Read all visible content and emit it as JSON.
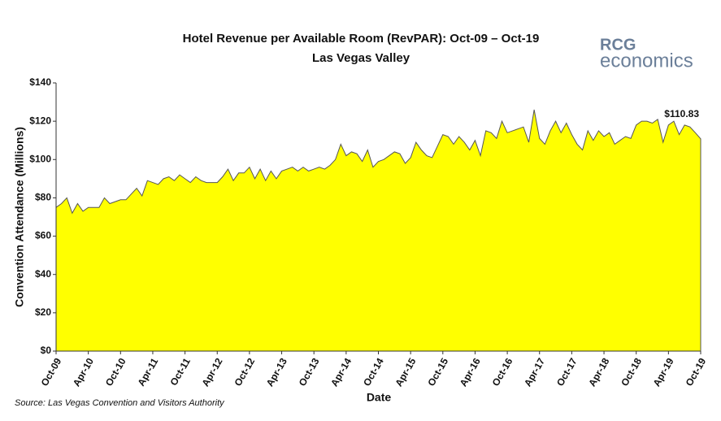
{
  "chart_data": {
    "type": "area",
    "title": "Hotel Revenue per Available Room (RevPAR): Oct-09 – Oct-19",
    "subtitle": "Las Vegas Valley",
    "x_label": "Date",
    "y_label": "Convention Attendance (Millions)",
    "source": "Source: Las Vegas Convention and Visitors Authority",
    "logo": {
      "top": "RCG",
      "bottom": "economics"
    },
    "categories": [
      "Oct-09",
      null,
      null,
      null,
      null,
      null,
      "Apr-10",
      null,
      null,
      null,
      null,
      null,
      "Oct-10",
      null,
      null,
      null,
      null,
      null,
      "Apr-11",
      null,
      null,
      null,
      null,
      null,
      "Oct-11",
      null,
      null,
      null,
      null,
      null,
      "Apr-12",
      null,
      null,
      null,
      null,
      null,
      "Oct-12",
      null,
      null,
      null,
      null,
      null,
      "Apr-13",
      null,
      null,
      null,
      null,
      null,
      "Oct-13",
      null,
      null,
      null,
      null,
      null,
      "Apr-14",
      null,
      null,
      null,
      null,
      null,
      "Oct-14",
      null,
      null,
      null,
      null,
      null,
      "Apr-15",
      null,
      null,
      null,
      null,
      null,
      "Oct-15",
      null,
      null,
      null,
      null,
      null,
      "Apr-16",
      null,
      null,
      null,
      null,
      null,
      "Oct-16",
      null,
      null,
      null,
      null,
      null,
      "Apr-17",
      null,
      null,
      null,
      null,
      null,
      "Oct-17",
      null,
      null,
      null,
      null,
      null,
      "Apr-18",
      null,
      null,
      null,
      null,
      null,
      "Oct-18",
      null,
      null,
      null,
      null,
      null,
      "Apr-19",
      null,
      null,
      null,
      null,
      null,
      "Oct-19"
    ],
    "values": [
      75,
      77,
      80,
      72,
      77,
      73,
      75,
      75,
      75,
      80,
      77,
      78,
      79,
      79,
      82,
      85,
      81,
      89,
      88,
      87,
      90,
      91,
      89,
      92,
      90,
      88,
      91,
      89,
      88,
      88,
      88,
      91,
      95,
      89,
      93,
      93,
      96,
      90,
      95,
      89,
      94,
      90,
      94,
      95,
      96,
      94,
      96,
      94,
      95,
      96,
      95,
      97,
      100,
      108,
      102,
      104,
      103,
      99,
      105,
      96,
      99,
      100,
      102,
      104,
      103,
      98,
      101,
      109,
      105,
      102,
      101,
      107,
      113,
      112,
      108,
      112,
      109,
      105,
      110,
      102,
      115,
      114,
      111,
      120,
      114,
      115,
      116,
      117,
      109,
      126,
      111,
      108,
      115,
      120,
      114,
      119,
      113,
      108,
      105,
      115,
      110,
      115,
      112,
      114,
      108,
      110,
      112,
      111,
      118,
      120,
      120,
      119,
      121,
      109,
      118,
      120,
      113,
      118,
      117,
      114,
      110.83
    ],
    "value_labels": [
      null,
      null,
      null,
      null,
      null,
      null,
      null,
      null,
      null,
      null,
      null,
      null,
      null,
      null,
      null,
      null,
      null,
      null,
      null,
      null,
      null,
      null,
      null,
      null,
      null,
      null,
      null,
      null,
      null,
      null,
      null,
      null,
      null,
      null,
      null,
      null,
      null,
      null,
      null,
      null,
      null,
      null,
      null,
      null,
      null,
      null,
      null,
      null,
      null,
      null,
      null,
      null,
      null,
      null,
      null,
      null,
      null,
      null,
      null,
      null,
      null,
      null,
      null,
      null,
      null,
      null,
      null,
      null,
      null,
      null,
      null,
      null,
      null,
      null,
      null,
      null,
      null,
      null,
      null,
      null,
      null,
      null,
      null,
      null,
      null,
      null,
      null,
      null,
      null,
      null,
      null,
      null,
      null,
      null,
      null,
      null,
      null,
      null,
      null,
      null,
      null,
      null,
      null,
      null,
      null,
      null,
      null,
      null,
      null,
      null,
      null,
      null,
      null,
      null,
      null,
      null,
      null,
      null,
      null,
      null,
      "$110.83"
    ],
    "color": "#ffff00",
    "line_color": "#555555",
    "ylim": [
      0,
      140
    ],
    "yticks": [
      {
        "value": 0,
        "label": "$0"
      },
      {
        "value": 20,
        "label": "$20"
      },
      {
        "value": 40,
        "label": "$40"
      },
      {
        "value": 60,
        "label": "$60"
      },
      {
        "value": 80,
        "label": "$80"
      },
      {
        "value": 100,
        "label": "$100"
      },
      {
        "value": 120,
        "label": "$120"
      },
      {
        "value": 140,
        "label": "$140"
      }
    ],
    "grid": false
  }
}
